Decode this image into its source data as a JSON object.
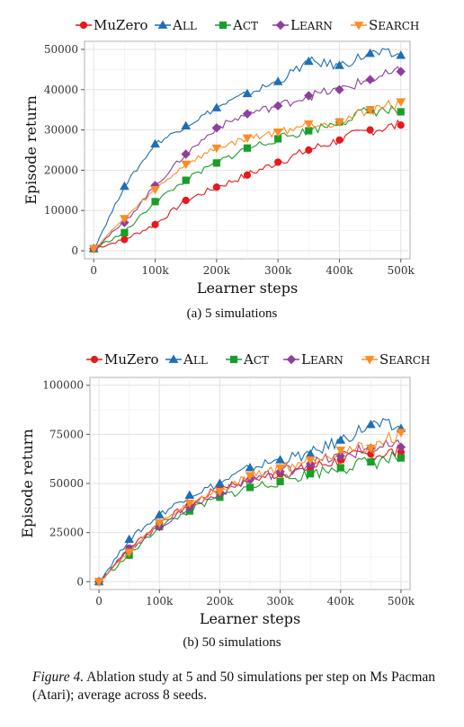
{
  "figure": {
    "number_label": "Figure 4.",
    "caption_text": " Ablation study at 5 and 50 simulations per step on Ms Pacman (Atari); average across 8 seeds."
  },
  "chart_data": [
    {
      "type": "line",
      "caption": "(a) 5 simulations",
      "xlabel": "Learner steps",
      "ylabel": "Episode return",
      "xlim": [
        -15000,
        515000
      ],
      "ylim": [
        -2000,
        52000
      ],
      "xticks": [
        0,
        100000,
        200000,
        300000,
        400000,
        500000
      ],
      "xtick_labels": [
        "0",
        "100k",
        "200k",
        "300k",
        "400k",
        "500k"
      ],
      "yticks": [
        0,
        10000,
        20000,
        30000,
        40000,
        50000
      ],
      "ytick_labels": [
        "0",
        "10000",
        "20000",
        "30000",
        "40000",
        "50000"
      ],
      "grid": true,
      "legend_position": "top",
      "series": [
        {
          "name": "MuZero",
          "color": "#e41a1c",
          "marker": "circle",
          "x": [
            0,
            50000,
            100000,
            150000,
            200000,
            250000,
            300000,
            350000,
            400000,
            450000,
            500000
          ],
          "y": [
            500,
            2800,
            6500,
            12500,
            15800,
            18800,
            22000,
            25000,
            27500,
            30000,
            31200
          ]
        },
        {
          "name": "All",
          "color": "#1f6fb4",
          "marker": "triangle-up",
          "x": [
            0,
            50000,
            100000,
            150000,
            200000,
            250000,
            300000,
            350000,
            400000,
            450000,
            500000
          ],
          "y": [
            500,
            16000,
            26500,
            31000,
            35500,
            39000,
            42000,
            47000,
            46000,
            49000,
            48500
          ]
        },
        {
          "name": "Act",
          "color": "#1a9e2a",
          "marker": "square",
          "x": [
            0,
            50000,
            100000,
            150000,
            200000,
            250000,
            300000,
            350000,
            400000,
            450000,
            500000
          ],
          "y": [
            500,
            4500,
            12200,
            17500,
            21800,
            25500,
            27800,
            29800,
            32000,
            35000,
            34500
          ]
        },
        {
          "name": "Learn",
          "color": "#8e3f9e",
          "marker": "diamond",
          "x": [
            0,
            50000,
            100000,
            150000,
            200000,
            250000,
            300000,
            350000,
            400000,
            450000,
            500000
          ],
          "y": [
            500,
            7000,
            16200,
            24000,
            30500,
            34000,
            36000,
            38500,
            40000,
            42500,
            44500
          ]
        },
        {
          "name": "Search",
          "color": "#fc8d24",
          "marker": "triangle-down",
          "x": [
            0,
            50000,
            100000,
            150000,
            200000,
            250000,
            300000,
            350000,
            400000,
            450000,
            500000
          ],
          "y": [
            500,
            8000,
            15200,
            21500,
            25500,
            28000,
            29500,
            31500,
            32000,
            35000,
            37000
          ]
        }
      ]
    },
    {
      "type": "line",
      "caption": "(b)  50 simulations",
      "xlabel": "Learner steps",
      "ylabel": "Episode return",
      "xlim": [
        -15000,
        515000
      ],
      "ylim": [
        -4000,
        104000
      ],
      "xticks": [
        0,
        100000,
        200000,
        300000,
        400000,
        500000
      ],
      "xtick_labels": [
        "0",
        "100k",
        "200k",
        "300k",
        "400k",
        "500k"
      ],
      "yticks": [
        0,
        25000,
        50000,
        75000,
        100000
      ],
      "ytick_labels": [
        "0",
        "25000",
        "50000",
        "75000",
        "100000"
      ],
      "grid": true,
      "legend_position": "top",
      "series": [
        {
          "name": "MuZero",
          "color": "#e41a1c",
          "marker": "circle",
          "x": [
            0,
            50000,
            100000,
            150000,
            200000,
            250000,
            300000,
            350000,
            400000,
            450000,
            500000
          ],
          "y": [
            0,
            17000,
            30000,
            39000,
            48000,
            52000,
            55000,
            58000,
            62000,
            65000,
            66000
          ]
        },
        {
          "name": "All",
          "color": "#1f6fb4",
          "marker": "triangle-up",
          "x": [
            0,
            50000,
            100000,
            150000,
            200000,
            250000,
            300000,
            350000,
            400000,
            450000,
            500000
          ],
          "y": [
            0,
            21500,
            34000,
            44000,
            50000,
            58000,
            62000,
            65000,
            72000,
            80000,
            78000
          ]
        },
        {
          "name": "Act",
          "color": "#1a9e2a",
          "marker": "square",
          "x": [
            0,
            50000,
            100000,
            150000,
            200000,
            250000,
            300000,
            350000,
            400000,
            450000,
            500000
          ],
          "y": [
            0,
            13500,
            28000,
            36000,
            43000,
            48000,
            51000,
            55000,
            58000,
            61000,
            63000
          ]
        },
        {
          "name": "Learn",
          "color": "#8e3f9e",
          "marker": "diamond",
          "x": [
            0,
            50000,
            100000,
            150000,
            200000,
            250000,
            300000,
            350000,
            400000,
            450000,
            500000
          ],
          "y": [
            0,
            16500,
            28000,
            38000,
            45000,
            52000,
            56000,
            60000,
            64000,
            68000,
            68500
          ]
        },
        {
          "name": "Search",
          "color": "#fc8d24",
          "marker": "triangle-down",
          "x": [
            0,
            50000,
            100000,
            150000,
            200000,
            250000,
            300000,
            350000,
            400000,
            450000,
            500000
          ],
          "y": [
            0,
            15000,
            30000,
            40000,
            46000,
            54000,
            58000,
            62000,
            67000,
            68000,
            76000
          ]
        }
      ]
    }
  ]
}
